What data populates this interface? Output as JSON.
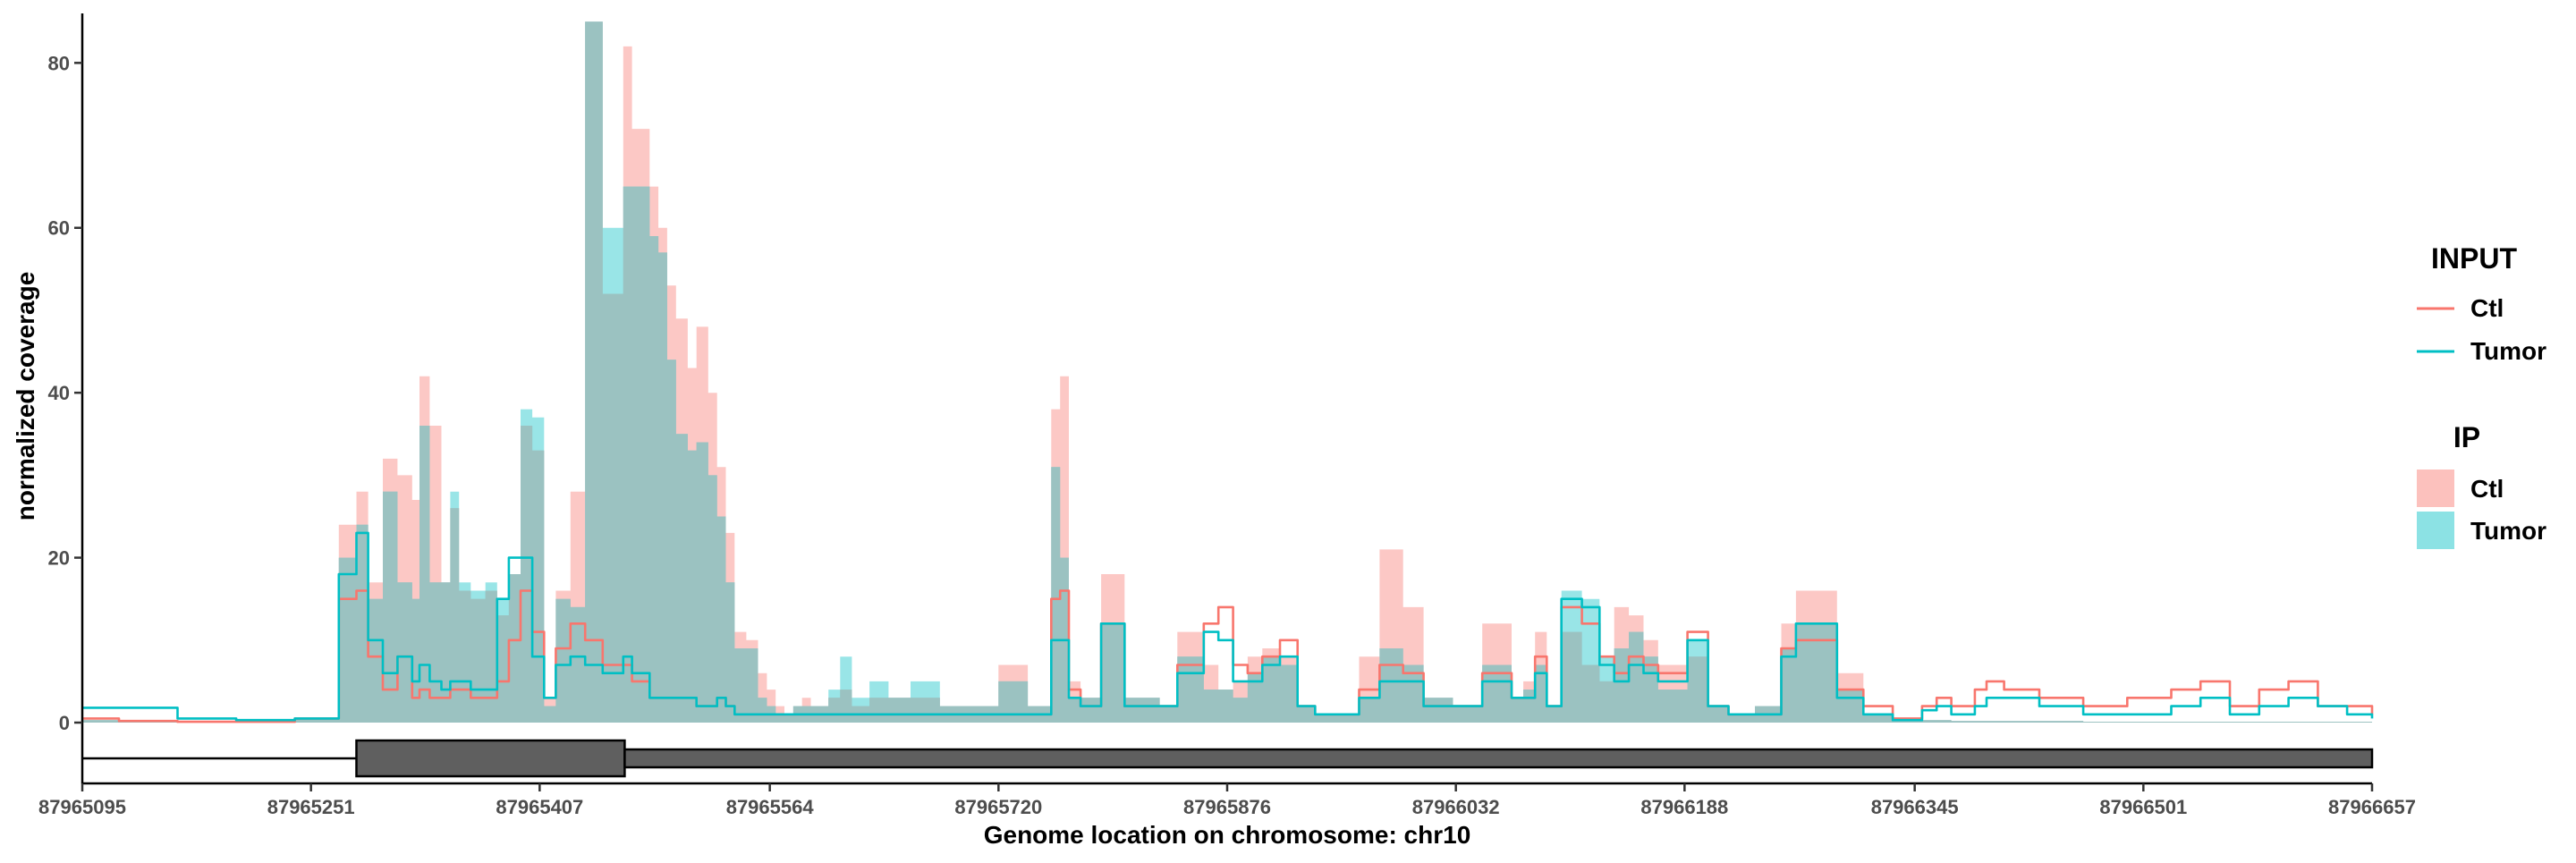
{
  "chart_data": {
    "type": "area",
    "title": "",
    "xlabel": "Genome location on chromosome: chr10",
    "ylabel": "normalized coverage",
    "xlim": [
      87965095,
      87966657
    ],
    "ylim": [
      0,
      86
    ],
    "x_ticks": [
      87965095,
      87965251,
      87965407,
      87965564,
      87965720,
      87965876,
      87966032,
      87966188,
      87966345,
      87966501,
      87966657
    ],
    "y_ticks": [
      0,
      20,
      40,
      60,
      80
    ],
    "grid": false,
    "colors": {
      "Ctl": "#f8766d",
      "Tumor": "#00bfc4",
      "Ctl_fill": "#f8766d",
      "Tumor_fill": "#00bfc4",
      "overlap": "#9bc2c1",
      "gene": "#5f5f5f"
    },
    "legends": [
      {
        "title": "INPUT",
        "kind": "line",
        "entries": [
          "Ctl",
          "Tumor"
        ],
        "placement": "right"
      },
      {
        "title": "IP",
        "kind": "fill",
        "entries": [
          "Ctl",
          "Tumor"
        ],
        "placement": "right"
      }
    ],
    "x": [
      87965095,
      87965120,
      87965160,
      87965200,
      87965240,
      87965270,
      87965282,
      87965290,
      87965300,
      87965310,
      87965320,
      87965325,
      87965332,
      87965340,
      87965346,
      87965352,
      87965360,
      87965370,
      87965378,
      87965386,
      87965394,
      87965402,
      87965410,
      87965418,
      87965428,
      87965438,
      87965450,
      87965464,
      87965470,
      87965482,
      87965488,
      87965494,
      87965500,
      87965508,
      87965514,
      87965522,
      87965528,
      87965534,
      87965540,
      87965548,
      87965556,
      87965562,
      87965568,
      87965574,
      87965580,
      87965586,
      87965592,
      87965598,
      87965604,
      87965612,
      87965620,
      87965632,
      87965645,
      87965660,
      87965680,
      87965700,
      87965720,
      87965740,
      87965750,
      87965756,
      87965762,
      87965768,
      87965776,
      87965790,
      87965800,
      87965806,
      87965812,
      87965820,
      87965830,
      87965842,
      87965860,
      87965870,
      87965880,
      87965890,
      87965900,
      87965912,
      87965924,
      87965936,
      87965950,
      87965966,
      87965980,
      87965996,
      87966010,
      87966030,
      87966050,
      87966064,
      87966070,
      87966078,
      87966086,
      87966094,
      87966104,
      87966118,
      87966130,
      87966140,
      87966150,
      87966160,
      87966170,
      87966180,
      87966190,
      87966204,
      87966218,
      87966228,
      87966236,
      87966244,
      87966254,
      87966264,
      87966276,
      87966292,
      87966310,
      87966330,
      87966350,
      87966360,
      87966370,
      87966378,
      87966386,
      87966394,
      87966406,
      87966430,
      87966460,
      87966490,
      87966520,
      87966540,
      87966560,
      87966580,
      87966600,
      87966620,
      87966640,
      87966657
    ],
    "series": [
      {
        "name": "Ctl",
        "group": "IP",
        "kind": "area",
        "values": [
          0.3,
          0.3,
          0.2,
          0.2,
          0.5,
          24,
          28,
          17,
          32,
          30,
          27,
          42,
          36,
          17,
          26,
          16,
          15,
          16,
          13,
          18,
          36,
          33,
          3,
          16,
          28,
          85,
          52,
          82,
          72,
          65,
          60,
          53,
          49,
          43,
          48,
          40,
          31,
          23,
          11,
          10,
          6,
          4,
          2,
          1,
          2,
          3,
          2,
          2,
          3,
          4,
          2,
          3,
          3,
          3,
          2,
          2,
          7,
          2,
          2,
          38,
          42,
          5,
          3,
          18,
          18,
          3,
          3,
          3,
          2,
          11,
          7,
          4,
          5,
          8,
          9,
          8,
          2,
          1,
          1,
          8,
          21,
          14,
          3,
          2,
          12,
          12,
          3,
          5,
          11,
          2,
          11,
          7,
          5,
          14,
          13,
          10,
          7,
          7,
          8,
          2,
          1,
          1,
          2,
          2,
          12,
          16,
          16,
          6,
          1,
          0.5,
          0.3,
          0.3,
          0.2,
          0.2,
          0.2,
          0.2,
          0.2,
          0.2,
          0.1,
          0.1,
          0.1,
          0.1,
          0.1,
          0.1,
          0.1,
          0.1,
          0.1,
          0.1
        ]
      },
      {
        "name": "Tumor",
        "group": "IP",
        "kind": "area",
        "values": [
          0.3,
          0.3,
          0.2,
          0.2,
          0.5,
          20,
          24,
          15,
          28,
          17,
          15,
          36,
          17,
          17,
          28,
          17,
          16,
          17,
          15,
          18,
          38,
          37,
          2,
          15,
          14,
          85,
          60,
          65,
          65,
          59,
          57,
          44,
          35,
          33,
          34,
          30,
          25,
          17,
          9,
          9,
          3,
          2,
          1,
          1,
          2,
          2,
          2,
          2,
          4,
          8,
          3,
          5,
          3,
          5,
          2,
          2,
          5,
          2,
          2,
          31,
          20,
          3,
          3,
          12,
          12,
          3,
          3,
          3,
          2,
          8,
          4,
          4,
          3,
          6,
          8,
          7,
          2,
          1,
          1,
          3,
          9,
          7,
          3,
          2,
          7,
          7,
          3,
          4,
          7,
          2,
          16,
          15,
          8,
          9,
          11,
          8,
          4,
          4,
          10,
          2,
          1,
          1,
          2,
          2,
          9,
          12,
          12,
          4,
          1,
          0.4,
          0.3,
          0.3,
          0.2,
          0.2,
          0.2,
          0.2,
          0.2,
          0.2,
          0.1,
          0.1,
          0.1,
          0.1,
          0.1,
          0.1,
          0.1,
          0.1,
          0.1,
          0.1
        ]
      },
      {
        "name": "Ctl",
        "group": "INPUT",
        "kind": "line",
        "values": [
          0.5,
          0.2,
          0.1,
          0.1,
          0.5,
          15,
          16,
          8,
          4,
          8,
          3,
          4,
          3,
          3,
          4,
          4,
          3,
          3,
          5,
          10,
          16,
          11,
          3,
          9,
          12,
          10,
          7,
          7,
          5,
          3,
          3,
          3,
          3,
          3,
          2,
          2,
          3,
          2,
          1,
          1,
          1,
          1,
          1,
          1,
          1,
          1,
          1,
          1,
          1,
          1,
          1,
          1,
          1,
          1,
          1,
          1,
          1,
          1,
          1,
          15,
          16,
          4,
          2,
          12,
          12,
          2,
          2,
          2,
          2,
          7,
          12,
          14,
          7,
          6,
          8,
          10,
          2,
          1,
          1,
          4,
          7,
          6,
          2,
          2,
          6,
          6,
          3,
          3,
          8,
          2,
          14,
          12,
          8,
          6,
          8,
          7,
          6,
          6,
          11,
          2,
          1,
          1,
          1,
          1,
          9,
          10,
          10,
          4,
          2,
          0.5,
          2,
          3,
          2,
          2,
          4,
          5,
          4,
          3,
          2,
          3,
          4,
          5,
          2,
          4,
          5,
          2,
          2,
          1
        ]
      },
      {
        "name": "Tumor",
        "group": "INPUT",
        "kind": "line",
        "values": [
          1.8,
          1.8,
          0.5,
          0.3,
          0.5,
          18,
          23,
          10,
          6,
          8,
          5,
          7,
          5,
          4,
          5,
          5,
          4,
          4,
          15,
          20,
          20,
          8,
          3,
          7,
          8,
          7,
          6,
          8,
          6,
          3,
          3,
          3,
          3,
          3,
          2,
          2,
          3,
          2,
          1,
          1,
          1,
          1,
          1,
          1,
          1,
          1,
          1,
          1,
          1,
          1,
          1,
          1,
          1,
          1,
          1,
          1,
          1,
          1,
          1,
          10,
          10,
          3,
          2,
          12,
          12,
          2,
          2,
          2,
          2,
          6,
          11,
          10,
          5,
          5,
          7,
          8,
          2,
          1,
          1,
          3,
          5,
          5,
          2,
          2,
          5,
          5,
          3,
          3,
          6,
          2,
          15,
          14,
          7,
          5,
          7,
          6,
          5,
          5,
          10,
          2,
          1,
          1,
          1,
          1,
          8,
          12,
          12,
          3,
          1,
          0.3,
          1.5,
          2,
          1,
          1,
          2,
          3,
          3,
          2,
          1,
          1,
          2,
          3,
          1,
          2,
          3,
          2,
          1,
          0.5
        ]
      }
    ],
    "gene_model": [
      {
        "feature": "line",
        "start": 87965095,
        "end": 87966657
      },
      {
        "feature": "exon",
        "start": 87965282,
        "end": 87965465
      },
      {
        "feature": "exon",
        "start": 87965465,
        "end": 87966657
      }
    ]
  }
}
